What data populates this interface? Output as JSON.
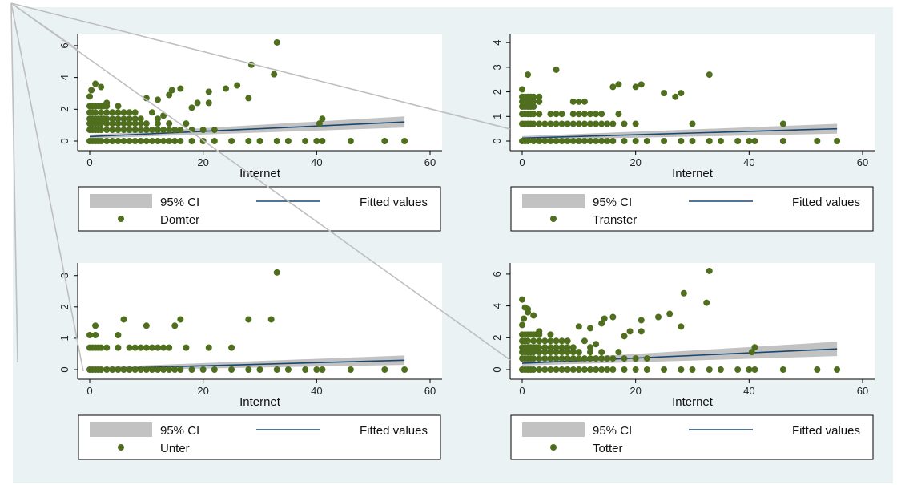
{
  "figure": {
    "background": "#eaf2f3",
    "plot_background": "#ffffff"
  },
  "colors": {
    "ci_band": "#c2c2c2",
    "fit_line": "#1a476f",
    "dots": "#4f6f1f",
    "connector": "#bfbfbf"
  },
  "chart_data": [
    {
      "type": "scatter",
      "xlabel": "Internet",
      "xlim": [
        0,
        60
      ],
      "xticks": [
        0,
        20,
        40,
        60
      ],
      "ylim": [
        0,
        6.5
      ],
      "yticks": [
        0,
        2,
        4,
        6
      ],
      "grid": false,
      "legend": {
        "ci_label": "95% CI",
        "fit_label": "Fitted values",
        "series_label": "Domter",
        "placement": "bottom"
      },
      "fit": {
        "x": [
          0,
          55.5
        ],
        "y": [
          0.28,
          1.2
        ],
        "ci_half_width": [
          0.12,
          0.35
        ]
      },
      "points": {
        "x": [
          0,
          0.5,
          1,
          1.5,
          2,
          3,
          4,
          5,
          6,
          7,
          8,
          9,
          10,
          11,
          12,
          13,
          14,
          15,
          16,
          18,
          20,
          22,
          25,
          28,
          30,
          33,
          35,
          38,
          40,
          41,
          46,
          52,
          55.5,
          0,
          0.5,
          1,
          1.5,
          2,
          3,
          4,
          5,
          6,
          7,
          8,
          9,
          10,
          11,
          12,
          13,
          14,
          15,
          16,
          18,
          20,
          22,
          0,
          0.5,
          1,
          1.5,
          2,
          3,
          4,
          5,
          6,
          7,
          8,
          9,
          10,
          12,
          14,
          17,
          0,
          0.5,
          1,
          1.5,
          2,
          2.5,
          3,
          4,
          5,
          6,
          7,
          8,
          9,
          12,
          0,
          0.5,
          1,
          2,
          3,
          4,
          5,
          6,
          7,
          8,
          11,
          0,
          0.5,
          1,
          1.5,
          2,
          2.5,
          3,
          5,
          0,
          0.3,
          1,
          2,
          3,
          10,
          12,
          14,
          14.5,
          16,
          19,
          21,
          24,
          26,
          28.5,
          32.5,
          40.5,
          41,
          33,
          28,
          21,
          18,
          13
        ],
        "y": [
          0,
          0,
          0,
          0,
          0,
          0,
          0,
          0,
          0,
          0,
          0,
          0,
          0,
          0,
          0,
          0,
          0,
          0,
          0,
          0,
          0,
          0,
          0,
          0,
          0,
          0,
          0,
          0,
          0,
          0,
          0,
          0,
          0,
          0.7,
          0.7,
          0.7,
          0.7,
          0.7,
          0.7,
          0.7,
          0.7,
          0.7,
          0.7,
          0.7,
          0.7,
          0.7,
          0.7,
          0.7,
          0.7,
          0.7,
          0.7,
          0.7,
          0.7,
          0.7,
          0.7,
          1.1,
          1.1,
          1.1,
          1.1,
          1.1,
          1.1,
          1.1,
          1.1,
          1.1,
          1.1,
          1.1,
          1.1,
          1.1,
          1.1,
          1.1,
          1.1,
          1.4,
          1.4,
          1.4,
          1.4,
          1.4,
          1.4,
          1.4,
          1.4,
          1.4,
          1.4,
          1.4,
          1.4,
          1.4,
          1.4,
          1.8,
          1.8,
          1.8,
          1.8,
          1.8,
          1.8,
          1.8,
          1.8,
          1.8,
          1.8,
          1.8,
          2.2,
          2.2,
          2.2,
          2.2,
          2.2,
          2.2,
          2.2,
          2.2,
          2.8,
          3.2,
          3.6,
          3.4,
          2.4,
          2.7,
          2.6,
          2.9,
          3.2,
          3.3,
          2.4,
          3.1,
          3.3,
          3.5,
          4.8,
          4.2,
          1.1,
          1.4,
          6.2,
          2.7,
          2.4,
          2.1,
          1.6
        ]
      }
    },
    {
      "type": "scatter",
      "xlabel": "Internet",
      "xlim": [
        0,
        60
      ],
      "xticks": [
        0,
        20,
        40,
        60
      ],
      "ylim": [
        0,
        4.2
      ],
      "yticks": [
        0,
        1,
        2,
        3,
        4
      ],
      "grid": false,
      "legend": {
        "ci_label": "95% CI",
        "fit_label": "Fitted values",
        "series_label": "Transter",
        "placement": "bottom"
      },
      "fit": {
        "x": [
          0,
          55.5
        ],
        "y": [
          0.12,
          0.5
        ],
        "ci_half_width": [
          0.08,
          0.2
        ]
      },
      "points": {
        "x": [
          0,
          0.5,
          1,
          2,
          3,
          4,
          5,
          6,
          7,
          8,
          9,
          10,
          11,
          12,
          13,
          14,
          15,
          16,
          18,
          20,
          22,
          25,
          28,
          30,
          33,
          35,
          38,
          40,
          41,
          46,
          52,
          55.5,
          0,
          0.5,
          1,
          1.5,
          2,
          3,
          4,
          5,
          6,
          7,
          8,
          9,
          10,
          11,
          12,
          13,
          14,
          15,
          16,
          18,
          20,
          0,
          0.5,
          1,
          1.5,
          2,
          3,
          5,
          6,
          7,
          9,
          10,
          11,
          12,
          13,
          14,
          0,
          0.5,
          1,
          1.5,
          2,
          0,
          0.5,
          1,
          1.5,
          2,
          3,
          9,
          10,
          11,
          0,
          0.5,
          1,
          1.5,
          2,
          3,
          1,
          6,
          16,
          17,
          20,
          21,
          25,
          27,
          28,
          30,
          33,
          46,
          17,
          0
        ],
        "y": [
          0,
          0,
          0,
          0,
          0,
          0,
          0,
          0,
          0,
          0,
          0,
          0,
          0,
          0,
          0,
          0,
          0,
          0,
          0,
          0,
          0,
          0,
          0,
          0,
          0,
          0,
          0,
          0,
          0,
          0,
          0,
          0,
          0.7,
          0.7,
          0.7,
          0.7,
          0.7,
          0.7,
          0.7,
          0.7,
          0.7,
          0.7,
          0.7,
          0.7,
          0.7,
          0.7,
          0.7,
          0.7,
          0.7,
          0.7,
          0.7,
          0.7,
          0.7,
          1.1,
          1.1,
          1.1,
          1.1,
          1.1,
          1.1,
          1.1,
          1.1,
          1.1,
          1.1,
          1.1,
          1.1,
          1.1,
          1.1,
          1.1,
          1.4,
          1.4,
          1.4,
          1.4,
          1.4,
          1.6,
          1.6,
          1.6,
          1.6,
          1.6,
          1.6,
          1.6,
          1.6,
          1.6,
          1.8,
          1.8,
          1.8,
          1.8,
          1.8,
          1.8,
          2.7,
          2.9,
          2.2,
          2.3,
          2.2,
          2.3,
          1.95,
          1.8,
          1.95,
          0.7,
          2.7,
          0.7,
          1.1,
          2.1
        ]
      }
    },
    {
      "type": "scatter",
      "xlabel": "Internet",
      "xlim": [
        0,
        60
      ],
      "xticks": [
        0,
        20,
        40,
        60
      ],
      "ylim": [
        0,
        3.3
      ],
      "yticks": [
        0,
        1,
        2,
        3
      ],
      "grid": false,
      "legend": {
        "ci_label": "95% CI",
        "fit_label": "Fitted values",
        "series_label": "Unter",
        "placement": "bottom"
      },
      "fit": {
        "x": [
          0,
          55.5
        ],
        "y": [
          0.02,
          0.3
        ],
        "ci_half_width": [
          0.05,
          0.15
        ]
      },
      "points": {
        "x": [
          0,
          0.5,
          1,
          1.5,
          2,
          3,
          4,
          5,
          6,
          7,
          8,
          9,
          10,
          11,
          12,
          13,
          14,
          15,
          16,
          18,
          20,
          22,
          25,
          28,
          30,
          33,
          35,
          38,
          40,
          41,
          46,
          52,
          55.5,
          0,
          0.5,
          1,
          1.5,
          2,
          3,
          5,
          7,
          8,
          9,
          10,
          11,
          12,
          13,
          14,
          17,
          21,
          25,
          0,
          1,
          5,
          1,
          6,
          10,
          15,
          16,
          28,
          32,
          33
        ],
        "y": [
          0,
          0,
          0,
          0,
          0,
          0,
          0,
          0,
          0,
          0,
          0,
          0,
          0,
          0,
          0,
          0,
          0,
          0,
          0,
          0,
          0,
          0,
          0,
          0,
          0,
          0,
          0,
          0,
          0,
          0,
          0,
          0,
          0,
          0.7,
          0.7,
          0.7,
          0.7,
          0.7,
          0.7,
          0.7,
          0.7,
          0.7,
          0.7,
          0.7,
          0.7,
          0.7,
          0.7,
          0.7,
          0.7,
          0.7,
          0.7,
          1.1,
          1.1,
          1.1,
          1.4,
          1.6,
          1.4,
          1.4,
          1.6,
          1.6,
          1.6,
          3.1
        ]
      }
    },
    {
      "type": "scatter",
      "xlabel": "Internet",
      "xlim": [
        0,
        60
      ],
      "xticks": [
        0,
        20,
        40,
        60
      ],
      "ylim": [
        0,
        6.5
      ],
      "yticks": [
        0,
        2,
        4,
        6
      ],
      "grid": false,
      "legend": {
        "ci_label": "95% CI",
        "fit_label": "Fitted values",
        "series_label": "Totter",
        "placement": "bottom"
      },
      "fit": {
        "x": [
          0,
          55.5
        ],
        "y": [
          0.4,
          1.3
        ],
        "ci_half_width": [
          0.15,
          0.45
        ]
      },
      "points": {
        "x": [
          0,
          0.5,
          1,
          1.5,
          2,
          3,
          4,
          5,
          6,
          7,
          8,
          9,
          10,
          11,
          12,
          13,
          14,
          15,
          16,
          18,
          20,
          22,
          25,
          28,
          30,
          33,
          35,
          38,
          40,
          41,
          46,
          52,
          55.5,
          0,
          0.5,
          1,
          1.5,
          2,
          3,
          4,
          5,
          6,
          7,
          8,
          9,
          10,
          11,
          12,
          13,
          14,
          15,
          16,
          18,
          20,
          22,
          0,
          0.5,
          1,
          1.5,
          2,
          3,
          4,
          5,
          6,
          7,
          8,
          9,
          10,
          12,
          14,
          17,
          0,
          0.5,
          1,
          1.5,
          2,
          2.5,
          3,
          4,
          5,
          6,
          7,
          8,
          9,
          12,
          0,
          0.5,
          1,
          2,
          3,
          4,
          5,
          6,
          7,
          8,
          11,
          0,
          0.5,
          1,
          1.5,
          2,
          2.5,
          3,
          5,
          0,
          0.3,
          1,
          2,
          3,
          10,
          12,
          14,
          14.5,
          16,
          19,
          21,
          24,
          26,
          28.5,
          32.5,
          40.5,
          41,
          33,
          28,
          21,
          18,
          13,
          0,
          1,
          0.5
        ],
        "y": [
          0,
          0,
          0,
          0,
          0,
          0,
          0,
          0,
          0,
          0,
          0,
          0,
          0,
          0,
          0,
          0,
          0,
          0,
          0,
          0,
          0,
          0,
          0,
          0,
          0,
          0,
          0,
          0,
          0,
          0,
          0,
          0,
          0,
          0.7,
          0.7,
          0.7,
          0.7,
          0.7,
          0.7,
          0.7,
          0.7,
          0.7,
          0.7,
          0.7,
          0.7,
          0.7,
          0.7,
          0.7,
          0.7,
          0.7,
          0.7,
          0.7,
          0.7,
          0.7,
          0.7,
          1.1,
          1.1,
          1.1,
          1.1,
          1.1,
          1.1,
          1.1,
          1.1,
          1.1,
          1.1,
          1.1,
          1.1,
          1.1,
          1.1,
          1.1,
          1.1,
          1.4,
          1.4,
          1.4,
          1.4,
          1.4,
          1.4,
          1.4,
          1.4,
          1.4,
          1.4,
          1.4,
          1.4,
          1.4,
          1.4,
          1.8,
          1.8,
          1.8,
          1.8,
          1.8,
          1.8,
          1.8,
          1.8,
          1.8,
          1.8,
          1.8,
          2.2,
          2.2,
          2.2,
          2.2,
          2.2,
          2.2,
          2.2,
          2.2,
          2.8,
          3.2,
          3.6,
          3.4,
          2.4,
          2.7,
          2.6,
          2.9,
          3.2,
          3.3,
          2.4,
          3.1,
          3.3,
          3.5,
          4.8,
          4.2,
          1.1,
          1.4,
          6.2,
          2.7,
          2.4,
          2.1,
          1.6,
          4.4,
          3.8,
          3.9
        ]
      }
    }
  ]
}
